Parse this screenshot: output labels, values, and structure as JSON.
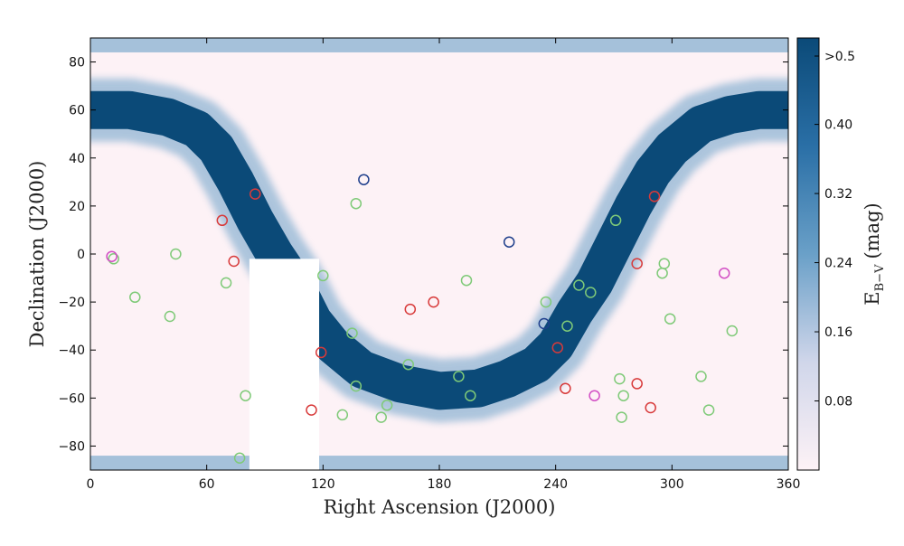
{
  "chart_data": {
    "type": "heatmap",
    "title": "",
    "xlabel": "Right Ascension (J2000)",
    "ylabel": "Declination (J2000)",
    "xlim": [
      0,
      360
    ],
    "ylim": [
      -90,
      90
    ],
    "x_ticks": [
      0,
      60,
      120,
      180,
      240,
      300,
      360
    ],
    "y_ticks": [
      -80,
      -60,
      -40,
      -20,
      0,
      20,
      40,
      60,
      80
    ],
    "x_tick_labels": [
      "0",
      "60",
      "120",
      "180",
      "240",
      "300",
      "360"
    ],
    "y_tick_labels": [
      "−80",
      "−60",
      "−40",
      "−20",
      "0",
      "20",
      "40",
      "60",
      "80"
    ],
    "grid": false,
    "colorbar": {
      "label_main": "E",
      "label_sub": "B−V",
      "label_unit": "(mag)",
      "range": [
        0,
        0.5
      ],
      "ticks": [
        0.08,
        0.16,
        0.24,
        0.32,
        0.4,
        0.5
      ],
      "tick_labels": [
        "0.08",
        "0.16",
        "0.24",
        "0.32",
        "0.40",
        ">0.5"
      ],
      "colors": [
        "#fdf2f6",
        "#d0d6ea",
        "#6aa0c8",
        "#2a6fa6",
        "#0b4a78"
      ]
    },
    "masked_region": {
      "ra": [
        82,
        118
      ],
      "dec": [
        -90,
        -2
      ]
    },
    "galactic_plane_band": {
      "ra": [
        0,
        20,
        40,
        55,
        65,
        75,
        85,
        95,
        105,
        115,
        125,
        140,
        160,
        180,
        200,
        215,
        230,
        240,
        250,
        260,
        270,
        280,
        290,
        300,
        315,
        330,
        345,
        360
      ],
      "dec": [
        60,
        60,
        57,
        52,
        44,
        30,
        14,
        0,
        -12,
        -28,
        -38,
        -48,
        -54,
        -57,
        -56,
        -52,
        -46,
        -38,
        -24,
        -12,
        4,
        20,
        34,
        44,
        54,
        58,
        60,
        60
      ]
    },
    "series": [
      {
        "name": "green",
        "color": "#7fca78",
        "points": [
          {
            "x": 12,
            "y": -2
          },
          {
            "x": 23,
            "y": -18
          },
          {
            "x": 41,
            "y": -26
          },
          {
            "x": 44,
            "y": 0
          },
          {
            "x": 70,
            "y": -12
          },
          {
            "x": 80,
            "y": -59
          },
          {
            "x": 77,
            "y": -85
          },
          {
            "x": 120,
            "y": -9
          },
          {
            "x": 135,
            "y": -33
          },
          {
            "x": 137,
            "y": -55
          },
          {
            "x": 130,
            "y": -67
          },
          {
            "x": 137,
            "y": 21
          },
          {
            "x": 150,
            "y": -68
          },
          {
            "x": 153,
            "y": -63
          },
          {
            "x": 164,
            "y": -46
          },
          {
            "x": 190,
            "y": -51
          },
          {
            "x": 196,
            "y": -59
          },
          {
            "x": 194,
            "y": -11
          },
          {
            "x": 235,
            "y": -20
          },
          {
            "x": 246,
            "y": -30
          },
          {
            "x": 252,
            "y": -13
          },
          {
            "x": 258,
            "y": -16
          },
          {
            "x": 271,
            "y": 14
          },
          {
            "x": 273,
            "y": -52
          },
          {
            "x": 275,
            "y": -59
          },
          {
            "x": 274,
            "y": -68
          },
          {
            "x": 295,
            "y": -8
          },
          {
            "x": 296,
            "y": -4
          },
          {
            "x": 299,
            "y": -27
          },
          {
            "x": 315,
            "y": -51
          },
          {
            "x": 319,
            "y": -65
          },
          {
            "x": 331,
            "y": -32
          }
        ]
      },
      {
        "name": "red",
        "color": "#d83a3a",
        "points": [
          {
            "x": 68,
            "y": 14
          },
          {
            "x": 74,
            "y": -3
          },
          {
            "x": 85,
            "y": 25
          },
          {
            "x": 119,
            "y": -41
          },
          {
            "x": 114,
            "y": -65
          },
          {
            "x": 165,
            "y": -23
          },
          {
            "x": 177,
            "y": -20
          },
          {
            "x": 241,
            "y": -39
          },
          {
            "x": 245,
            "y": -56
          },
          {
            "x": 282,
            "y": -4
          },
          {
            "x": 282,
            "y": -54
          },
          {
            "x": 289,
            "y": -64
          },
          {
            "x": 291,
            "y": 24
          }
        ]
      },
      {
        "name": "navy",
        "color": "#1f3f8c",
        "points": [
          {
            "x": 141,
            "y": 31
          },
          {
            "x": 216,
            "y": 5
          },
          {
            "x": 234,
            "y": -29
          }
        ]
      },
      {
        "name": "magenta",
        "color": "#d24fc4",
        "points": [
          {
            "x": 11,
            "y": -1
          },
          {
            "x": 260,
            "y": -59
          },
          {
            "x": 327,
            "y": -8
          }
        ]
      }
    ]
  }
}
